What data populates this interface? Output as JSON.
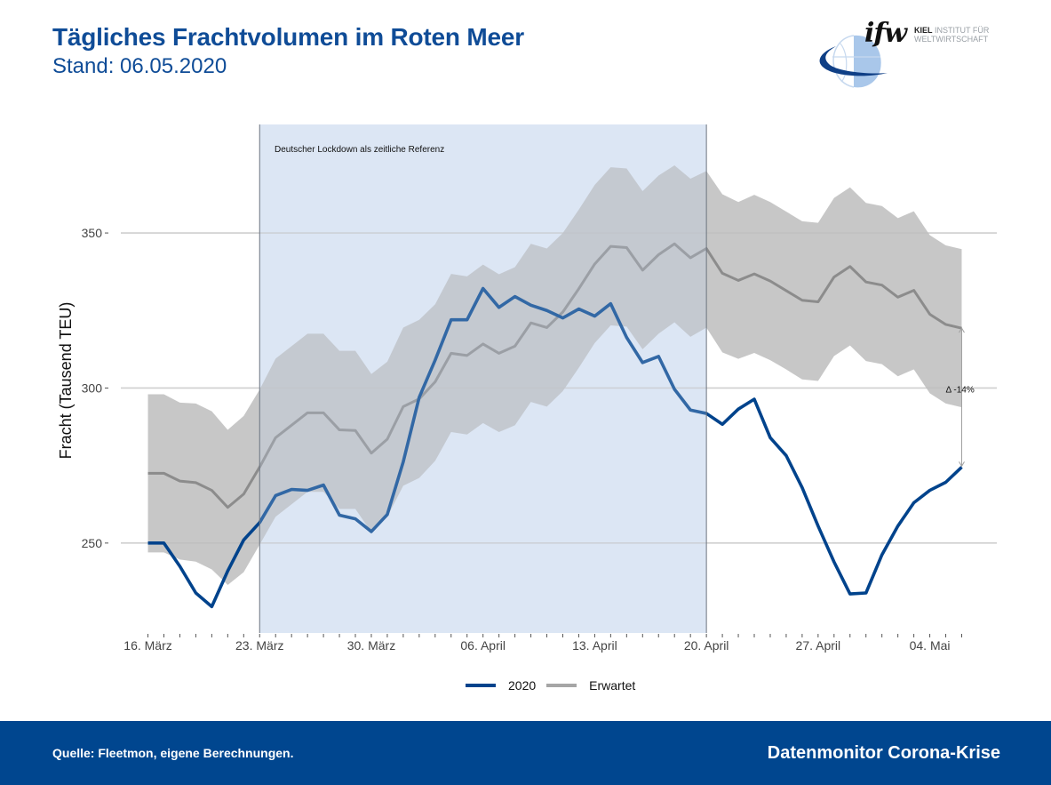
{
  "header": {
    "title": "Tägliches Frachtvolumen im Roten Meer",
    "subtitle": "Stand: 06.05.2020"
  },
  "logo": {
    "mark": "ifw",
    "line1_bold": "KIEL",
    "line1_rest": " INSTITUT FÜR",
    "line2": "WELTWIRTSCHAFT"
  },
  "footer": {
    "source": "Quelle: Fleetmon, eigene Berechnungen.",
    "brand": "Datenmonitor Corona-Krise"
  },
  "colors": {
    "brand_blue": "#00468f",
    "title_blue": "#0f4c97",
    "series_2020": "#00438c",
    "series_expected": "#8c8c8c",
    "band": "#bdbdbd",
    "lockdown_shade": "#e3ebf6"
  },
  "chart_data": {
    "type": "line",
    "title": "Tägliches Frachtvolumen im Roten Meer",
    "xlabel": "",
    "ylabel": "Fracht (Tausend TEU)",
    "ylim": [
      221,
      385
    ],
    "yticks": [
      250,
      300,
      350
    ],
    "grid": true,
    "x_start": "16.03.2020",
    "x_days": [
      0,
      1,
      2,
      3,
      4,
      5,
      6,
      7,
      8,
      9,
      10,
      11,
      12,
      13,
      14,
      15,
      16,
      17,
      18,
      19,
      20,
      21,
      22,
      23,
      24,
      25,
      26,
      27,
      28,
      29,
      30,
      31,
      32,
      33,
      34,
      35,
      36,
      37,
      38,
      39,
      40,
      41,
      42,
      43,
      44,
      45,
      46,
      47,
      48,
      49,
      50,
      51
    ],
    "xticks": [
      {
        "day": 0,
        "label": "16. März"
      },
      {
        "day": 7,
        "label": "23. März"
      },
      {
        "day": 14,
        "label": "30. März"
      },
      {
        "day": 21,
        "label": "06. April"
      },
      {
        "day": 28,
        "label": "13. April"
      },
      {
        "day": 35,
        "label": "20. April"
      },
      {
        "day": 42,
        "label": "27. April"
      },
      {
        "day": 49,
        "label": "04. Mai"
      }
    ],
    "xlim": [
      -1.7,
      53.2
    ],
    "series": [
      {
        "name": "2020",
        "values": [
          250.0,
          250.0,
          242.5,
          233.9,
          229.5,
          241.0,
          251.0,
          256.6,
          265.3,
          267.3,
          267.0,
          268.7,
          259.0,
          257.8,
          253.7,
          259.2,
          276.2,
          297.0,
          309.0,
          322.0,
          322.0,
          332.1,
          326.0,
          329.5,
          326.7,
          325.0,
          322.6,
          325.5,
          323.2,
          327.2,
          316.3,
          308.2,
          310.2,
          299.6,
          292.9,
          291.8,
          288.3,
          293.2,
          296.4,
          284.0,
          278.2,
          267.9,
          255.5,
          243.9,
          233.6,
          233.9,
          246.2,
          255.5,
          263.0,
          267.0,
          269.6,
          274.5
        ]
      },
      {
        "name": "Erwartet",
        "values": [
          272.5,
          272.5,
          270.0,
          269.5,
          267.0,
          261.5,
          265.8,
          274.5,
          284.0,
          288.0,
          292.0,
          292.0,
          286.5,
          286.3,
          279.0,
          283.5,
          294.0,
          296.5,
          302.0,
          311.2,
          310.5,
          314.2,
          311.2,
          313.5,
          321.0,
          319.5,
          324.5,
          332.0,
          340.0,
          345.7,
          345.3,
          338.0,
          343.0,
          346.5,
          342.0,
          345.0,
          337.0,
          334.7,
          336.8,
          334.5,
          331.4,
          328.3,
          327.8,
          335.8,
          339.2,
          334.2,
          333.2,
          329.3,
          331.5,
          323.8,
          320.5,
          319.3
        ]
      }
    ],
    "band": {
      "name": "Erwartet (Bandbreite)",
      "upper": [
        298.0,
        298.0,
        295.3,
        295.0,
        292.5,
        286.5,
        291.0,
        299.5,
        309.5,
        313.5,
        317.5,
        317.5,
        312.0,
        312.0,
        304.5,
        308.5,
        319.5,
        322.0,
        327.0,
        336.8,
        336.0,
        339.8,
        336.7,
        339.0,
        346.5,
        345.0,
        350.0,
        357.5,
        365.5,
        371.2,
        370.8,
        363.5,
        368.5,
        371.8,
        367.5,
        370.0,
        362.5,
        360.0,
        362.3,
        360.0,
        356.9,
        353.8,
        353.3,
        361.3,
        364.7,
        359.7,
        358.7,
        354.8,
        357.0,
        349.3,
        346.0,
        344.8
      ],
      "lower": [
        247.0,
        247.0,
        244.7,
        244.0,
        241.5,
        236.5,
        240.6,
        249.5,
        258.5,
        262.5,
        266.5,
        266.5,
        261.0,
        261.0,
        253.5,
        258.5,
        268.5,
        271.0,
        276.5,
        285.8,
        285.0,
        288.7,
        285.8,
        288.0,
        295.5,
        294.0,
        299.0,
        306.5,
        314.5,
        320.2,
        319.8,
        312.5,
        317.5,
        321.2,
        316.5,
        319.5,
        311.5,
        309.4,
        311.3,
        309.0,
        306.0,
        302.8,
        302.3,
        310.3,
        313.7,
        308.7,
        307.7,
        303.8,
        306.0,
        298.3,
        295.0,
        293.8
      ]
    },
    "shaded_region": {
      "label": "Deutscher Lockdown als zeitliche Referenz",
      "from_day": 7,
      "to_day": 35
    },
    "annotation": {
      "text": "Δ -14%",
      "day": 51,
      "from_value": 319.3,
      "to_value": 274.5
    },
    "legend": {
      "position": "bottom",
      "entries": [
        "2020",
        "Erwartet"
      ]
    }
  }
}
